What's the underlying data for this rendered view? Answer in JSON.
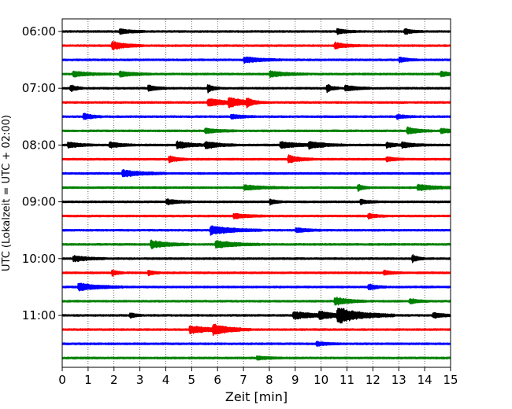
{
  "chart_data": {
    "type": "line",
    "chart_kind": "helicorder seismogram",
    "xlabel": "Zeit  [min]",
    "ylabel": "UTC (Lokalzeit = UTC + 02:00)",
    "xlim": [
      0,
      15
    ],
    "x_ticks": [
      "0",
      "1",
      "2",
      "3",
      "4",
      "5",
      "6",
      "7",
      "8",
      "9",
      "10",
      "11",
      "12",
      "13",
      "14",
      "15"
    ],
    "y_ticks": [
      {
        "label": "06:00",
        "row": 0
      },
      {
        "label": "07:00",
        "row": 4
      },
      {
        "label": "08:00",
        "row": 8
      },
      {
        "label": "09:00",
        "row": 12
      },
      {
        "label": "10:00",
        "row": 16
      },
      {
        "label": "11:00",
        "row": 20
      }
    ],
    "trace_interval_min": 15,
    "trace_count": 24,
    "trace_colors": [
      "#000000",
      "#ff0000",
      "#0000ff",
      "#008000"
    ],
    "grid": {
      "vertical_dotted": true,
      "horizontal": false
    },
    "noise_level": 0.35,
    "events": [
      {
        "row": 0,
        "t": 2.2,
        "amp": 1.6,
        "dur": 0.4
      },
      {
        "row": 0,
        "t": 10.6,
        "amp": 1.8,
        "dur": 0.3
      },
      {
        "row": 0,
        "t": 13.2,
        "amp": 1.6,
        "dur": 0.3
      },
      {
        "row": 1,
        "t": 1.9,
        "amp": 2.4,
        "dur": 0.5
      },
      {
        "row": 1,
        "t": 10.5,
        "amp": 2.0,
        "dur": 0.4
      },
      {
        "row": 2,
        "t": 7.0,
        "amp": 1.8,
        "dur": 0.6
      },
      {
        "row": 2,
        "t": 13.0,
        "amp": 1.6,
        "dur": 0.3
      },
      {
        "row": 3,
        "t": 0.4,
        "amp": 1.5,
        "dur": 0.6
      },
      {
        "row": 3,
        "t": 2.2,
        "amp": 1.6,
        "dur": 0.5
      },
      {
        "row": 3,
        "t": 8.0,
        "amp": 1.7,
        "dur": 0.6
      },
      {
        "row": 3,
        "t": 14.6,
        "amp": 1.8,
        "dur": 0.3
      },
      {
        "row": 4,
        "t": 0.3,
        "amp": 2.2,
        "dur": 0.2
      },
      {
        "row": 4,
        "t": 3.3,
        "amp": 1.8,
        "dur": 0.3
      },
      {
        "row": 4,
        "t": 5.6,
        "amp": 2.6,
        "dur": 0.2
      },
      {
        "row": 4,
        "t": 10.2,
        "amp": 2.6,
        "dur": 0.2
      },
      {
        "row": 4,
        "t": 10.9,
        "amp": 1.8,
        "dur": 0.4
      },
      {
        "row": 5,
        "t": 5.6,
        "amp": 2.2,
        "dur": 0.7
      },
      {
        "row": 5,
        "t": 6.4,
        "amp": 2.4,
        "dur": 0.6
      },
      {
        "row": 5,
        "t": 7.1,
        "amp": 2.2,
        "dur": 0.2
      },
      {
        "row": 6,
        "t": 0.8,
        "amp": 2.0,
        "dur": 0.3
      },
      {
        "row": 6,
        "t": 6.5,
        "amp": 1.4,
        "dur": 0.4
      },
      {
        "row": 6,
        "t": 12.9,
        "amp": 1.3,
        "dur": 0.3
      },
      {
        "row": 7,
        "t": 5.5,
        "amp": 1.4,
        "dur": 0.5
      },
      {
        "row": 7,
        "t": 13.3,
        "amp": 2.2,
        "dur": 0.4
      },
      {
        "row": 7,
        "t": 14.6,
        "amp": 1.5,
        "dur": 0.4
      },
      {
        "row": 8,
        "t": 0.2,
        "amp": 1.8,
        "dur": 0.4
      },
      {
        "row": 8,
        "t": 1.8,
        "amp": 1.8,
        "dur": 0.4
      },
      {
        "row": 8,
        "t": 4.4,
        "amp": 2.0,
        "dur": 0.6
      },
      {
        "row": 8,
        "t": 5.5,
        "amp": 2.0,
        "dur": 0.5
      },
      {
        "row": 8,
        "t": 8.4,
        "amp": 1.8,
        "dur": 0.7
      },
      {
        "row": 8,
        "t": 9.5,
        "amp": 1.8,
        "dur": 0.6
      },
      {
        "row": 8,
        "t": 12.5,
        "amp": 1.6,
        "dur": 0.3
      },
      {
        "row": 8,
        "t": 13.1,
        "amp": 1.7,
        "dur": 0.4
      },
      {
        "row": 9,
        "t": 4.1,
        "amp": 2.0,
        "dur": 0.3
      },
      {
        "row": 9,
        "t": 8.7,
        "amp": 2.4,
        "dur": 0.4
      },
      {
        "row": 9,
        "t": 12.5,
        "amp": 1.4,
        "dur": 0.3
      },
      {
        "row": 10,
        "t": 2.3,
        "amp": 2.0,
        "dur": 0.7
      },
      {
        "row": 11,
        "t": 7.0,
        "amp": 1.4,
        "dur": 0.7
      },
      {
        "row": 11,
        "t": 11.4,
        "amp": 2.0,
        "dur": 0.2
      },
      {
        "row": 11,
        "t": 13.7,
        "amp": 1.8,
        "dur": 0.6
      },
      {
        "row": 12,
        "t": 4.0,
        "amp": 1.6,
        "dur": 0.4
      },
      {
        "row": 12,
        "t": 8.0,
        "amp": 1.8,
        "dur": 0.2
      },
      {
        "row": 12,
        "t": 11.5,
        "amp": 1.4,
        "dur": 0.3
      },
      {
        "row": 13,
        "t": 6.6,
        "amp": 1.5,
        "dur": 0.5
      },
      {
        "row": 13,
        "t": 11.8,
        "amp": 1.5,
        "dur": 0.3
      },
      {
        "row": 14,
        "t": 5.7,
        "amp": 2.6,
        "dur": 0.8
      },
      {
        "row": 14,
        "t": 9.0,
        "amp": 1.4,
        "dur": 0.4
      },
      {
        "row": 15,
        "t": 3.4,
        "amp": 2.4,
        "dur": 0.6
      },
      {
        "row": 15,
        "t": 5.9,
        "amp": 2.2,
        "dur": 0.7
      },
      {
        "row": 16,
        "t": 0.4,
        "amp": 1.8,
        "dur": 0.5
      },
      {
        "row": 16,
        "t": 13.5,
        "amp": 2.4,
        "dur": 0.2
      },
      {
        "row": 17,
        "t": 1.9,
        "amp": 1.8,
        "dur": 0.2
      },
      {
        "row": 17,
        "t": 3.3,
        "amp": 1.6,
        "dur": 0.2
      },
      {
        "row": 17,
        "t": 12.4,
        "amp": 1.4,
        "dur": 0.3
      },
      {
        "row": 18,
        "t": 0.6,
        "amp": 2.2,
        "dur": 0.7
      },
      {
        "row": 18,
        "t": 11.8,
        "amp": 1.8,
        "dur": 0.3
      },
      {
        "row": 19,
        "t": 10.5,
        "amp": 2.4,
        "dur": 0.5
      },
      {
        "row": 19,
        "t": 13.4,
        "amp": 1.6,
        "dur": 0.3
      },
      {
        "row": 20,
        "t": 2.6,
        "amp": 1.6,
        "dur": 0.2
      },
      {
        "row": 20,
        "t": 8.9,
        "amp": 2.2,
        "dur": 0.8
      },
      {
        "row": 20,
        "t": 9.9,
        "amp": 2.0,
        "dur": 0.5
      },
      {
        "row": 20,
        "t": 10.6,
        "amp": 4.4,
        "dur": 0.9
      },
      {
        "row": 20,
        "t": 14.3,
        "amp": 1.6,
        "dur": 0.4
      },
      {
        "row": 21,
        "t": 4.9,
        "amp": 2.2,
        "dur": 0.8
      },
      {
        "row": 21,
        "t": 5.8,
        "amp": 2.6,
        "dur": 0.6
      },
      {
        "row": 22,
        "t": 9.8,
        "amp": 1.2,
        "dur": 0.4
      },
      {
        "row": 23,
        "t": 7.5,
        "amp": 1.1,
        "dur": 0.4
      }
    ]
  }
}
